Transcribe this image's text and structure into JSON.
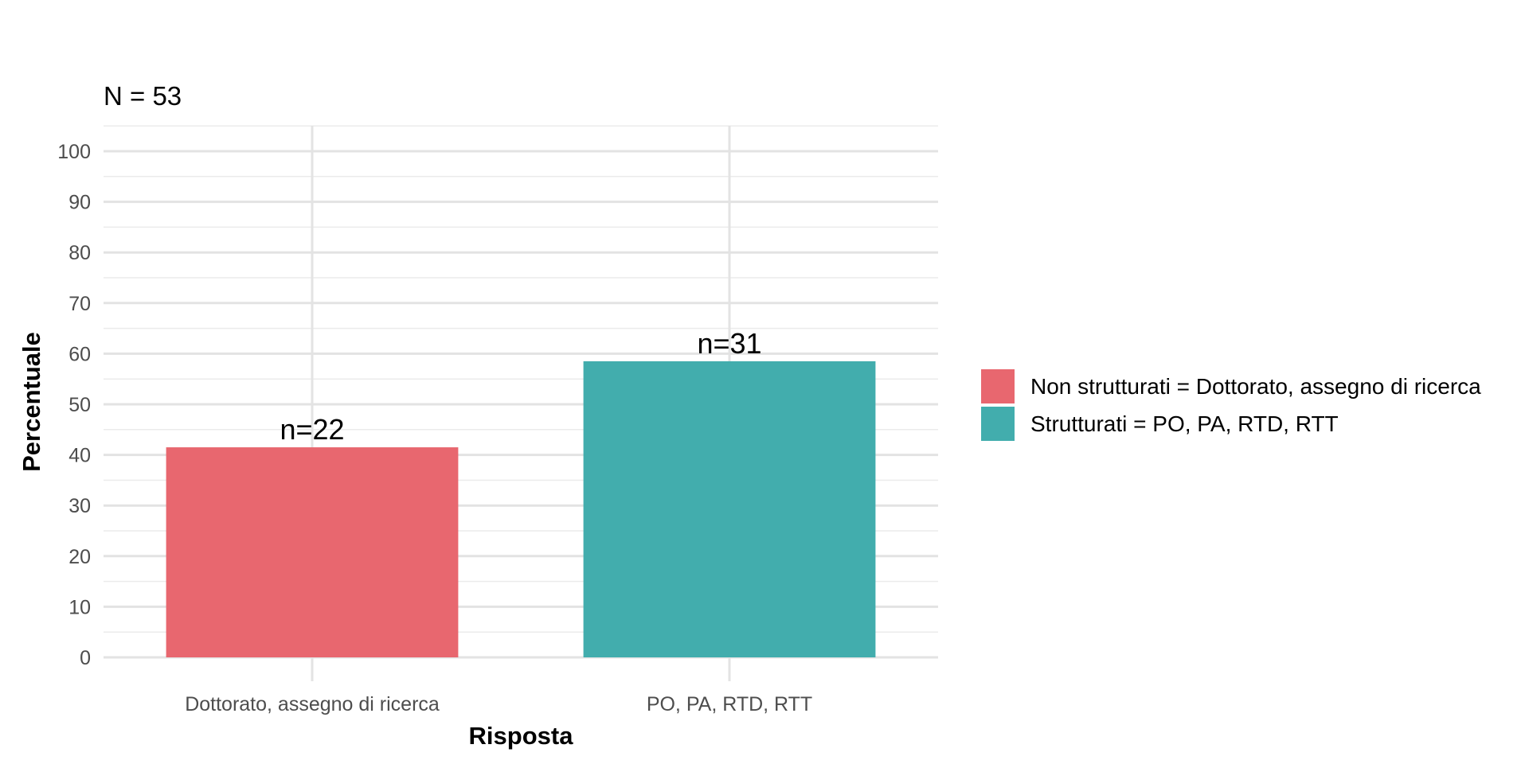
{
  "chart_data": {
    "type": "bar",
    "subtitle": "N = 53",
    "xlabel": "Risposta",
    "ylabel": "Percentuale",
    "categories": [
      "Dottorato, assegno di ricerca",
      "PO, PA, RTD, RTT"
    ],
    "values": [
      41.5,
      58.5
    ],
    "data_labels": [
      "n=22",
      "n=31"
    ],
    "colors": [
      "#E8676F",
      "#42ADAD"
    ],
    "ylim": [
      0,
      105
    ],
    "yticks": [
      0,
      10,
      20,
      30,
      40,
      50,
      60,
      70,
      80,
      90,
      100
    ],
    "ytick_labels": [
      "0",
      "10",
      "20",
      "30",
      "40",
      "50",
      "60",
      "70",
      "80",
      "90",
      "100"
    ],
    "grid": true,
    "legend": {
      "placement": "right",
      "entries": [
        {
          "label": "Non strutturati = Dottorato, assegno di ricerca",
          "color": "#E8676F"
        },
        {
          "label": "Strutturati = PO, PA, RTD, RTT",
          "color": "#42ADAD"
        }
      ]
    }
  }
}
